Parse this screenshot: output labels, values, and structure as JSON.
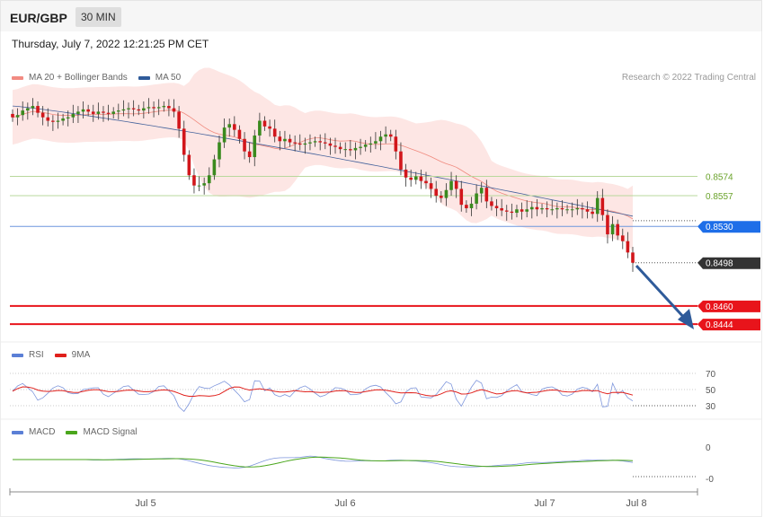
{
  "header": {
    "pair": "EUR/GBP",
    "timeframe": "30 MIN"
  },
  "datetime": "Thursday, July 7, 2022 12:21:25 PM CET",
  "credit": "Research © 2022 Trading Central",
  "legend_main": [
    {
      "label": "MA 20 + Bollinger Bands",
      "color": "#f28b82"
    },
    {
      "label": "MA 50",
      "color": "#2f5b9a"
    }
  ],
  "legend_rsi": [
    {
      "label": "RSI",
      "color": "#5b7fd6"
    },
    {
      "label": "9MA",
      "color": "#e0201b"
    }
  ],
  "legend_macd": [
    {
      "label": "MACD",
      "color": "#5b7fd6"
    },
    {
      "label": "MACD Signal",
      "color": "#4aa61c"
    }
  ],
  "levels": [
    {
      "value": 0.8574,
      "label": "0.8574",
      "kind": "resistance",
      "color": "#6aa22a",
      "line": "#b9d89c"
    },
    {
      "value": 0.8557,
      "label": "0.8557",
      "kind": "resistance",
      "color": "#6aa22a",
      "line": "#b9d89c"
    },
    {
      "value": 0.853,
      "label": "0.8530",
      "kind": "pivot",
      "color": "#1e6ee8",
      "line": "#6c96dd"
    },
    {
      "value": 0.8498,
      "label": "0.8498",
      "kind": "last",
      "color": "#333333",
      "line": "#333333"
    },
    {
      "value": 0.846,
      "label": "0.8460",
      "kind": "support",
      "color": "#e8141b",
      "line": "#e8141b"
    },
    {
      "value": 0.8444,
      "label": "0.8444",
      "kind": "support",
      "color": "#e8141b",
      "line": "#e8141b"
    }
  ],
  "rsi_ticks": [
    "70",
    "50",
    "30"
  ],
  "macd_ticks": [
    "0",
    "-0"
  ],
  "x_ticks": [
    "Jul 5",
    "Jul 6",
    "Jul 7",
    "Jul 8"
  ],
  "chart_data": {
    "type": "candlestick",
    "ylim": [
      0.8433,
      0.864
    ],
    "close": [
      0.8626,
      0.8628,
      0.8632,
      0.8634,
      0.8636,
      0.863,
      0.8626,
      0.8623,
      0.8622,
      0.8623,
      0.8625,
      0.8626,
      0.8629,
      0.8631,
      0.8633,
      0.8631,
      0.8629,
      0.8631,
      0.863,
      0.8629,
      0.8631,
      0.8632,
      0.8633,
      0.8634,
      0.8633,
      0.8632,
      0.8634,
      0.8635,
      0.8634,
      0.8635,
      0.8636,
      0.8634,
      0.8631,
      0.8616,
      0.8593,
      0.8575,
      0.8566,
      0.8566,
      0.8568,
      0.8575,
      0.8589,
      0.8604,
      0.8617,
      0.862,
      0.8615,
      0.8607,
      0.8596,
      0.8591,
      0.861,
      0.8623,
      0.8618,
      0.8616,
      0.8609,
      0.8605,
      0.8607,
      0.8604,
      0.8603,
      0.8602,
      0.8603,
      0.8604,
      0.8605,
      0.8604,
      0.8603,
      0.8601,
      0.86,
      0.8598,
      0.8598,
      0.8597,
      0.8599,
      0.86,
      0.8602,
      0.8603,
      0.8605,
      0.8609,
      0.8611,
      0.8609,
      0.8596,
      0.858,
      0.8573,
      0.8571,
      0.8574,
      0.857,
      0.8568,
      0.8563,
      0.8557,
      0.8555,
      0.8562,
      0.857,
      0.8563,
      0.8549,
      0.8546,
      0.855,
      0.8559,
      0.8564,
      0.8552,
      0.8548,
      0.8546,
      0.8544,
      0.8543,
      0.8542,
      0.8545,
      0.8543,
      0.8545,
      0.8547,
      0.8545,
      0.8546,
      0.8545,
      0.8545,
      0.8546,
      0.8545,
      0.8545,
      0.8545,
      0.8546,
      0.8545,
      0.8543,
      0.8541,
      0.8555,
      0.854,
      0.8523,
      0.8532,
      0.8522,
      0.8517,
      0.8507,
      0.8498
    ],
    "ma50_range": [
      0.8636,
      0.8539
    ],
    "rsi_range": [
      30,
      70
    ],
    "macd_range": [
      "-0",
      "0"
    ]
  }
}
